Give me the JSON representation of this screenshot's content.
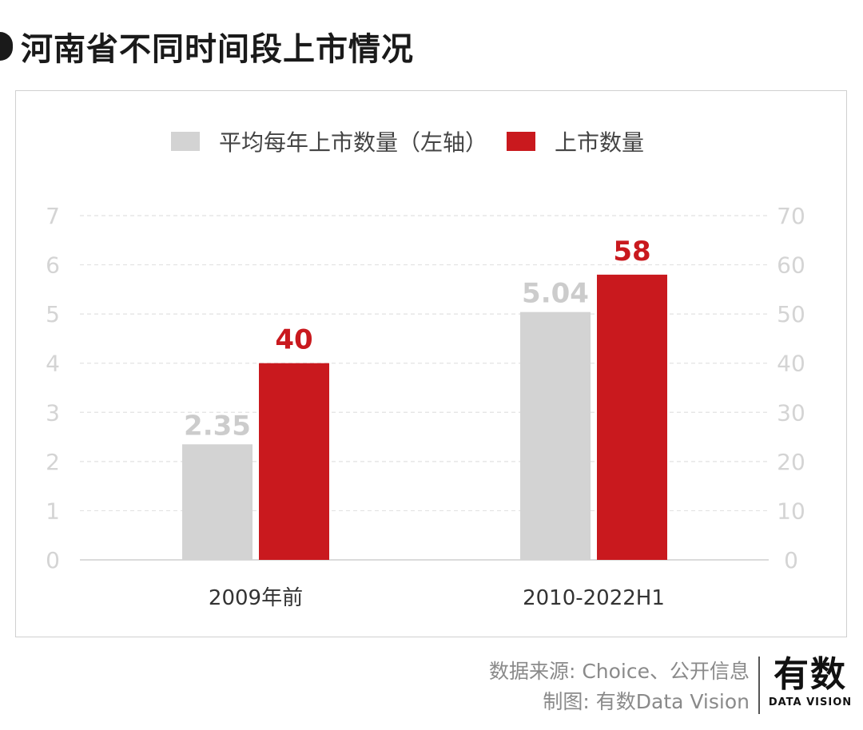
{
  "header": {
    "title": "河南省不同时间段上市情况"
  },
  "legend": {
    "items": [
      {
        "label": "平均每年上市数量（左轴）",
        "color": "#d3d3d3"
      },
      {
        "label": "上市数量",
        "color": "#c9191e"
      }
    ]
  },
  "footer": {
    "source": "数据来源: Choice、公开信息",
    "credit": "制图: 有数Data Vision",
    "logo_cn": "有数",
    "logo_en": "DATA VISION"
  },
  "colors": {
    "avg_bar": "#d3d3d3",
    "count_bar": "#c9191e",
    "avg_label": "#cccccc",
    "count_label": "#c9191e",
    "axis_tick": "#d4d4d4",
    "category_label": "#333333",
    "grid": "#e2e2e2"
  },
  "chart_data": {
    "type": "bar",
    "title": "河南省不同时间段上市情况",
    "categories": [
      "2009年前",
      "2010-2022H1"
    ],
    "series": [
      {
        "name": "平均每年上市数量（左轴）",
        "axis": "left",
        "values": [
          2.35,
          5.04
        ],
        "labels": [
          "2.35",
          "5.04"
        ]
      },
      {
        "name": "上市数量",
        "axis": "right",
        "values": [
          40,
          58
        ],
        "labels": [
          "40",
          "58"
        ]
      }
    ],
    "y_left": {
      "lim": [
        0,
        7
      ],
      "ticks": [
        "0",
        "1",
        "2",
        "3",
        "4",
        "5",
        "6",
        "7"
      ]
    },
    "y_right": {
      "lim": [
        0,
        70
      ],
      "ticks": [
        "0",
        "10",
        "20",
        "30",
        "40",
        "50",
        "60",
        "70"
      ]
    },
    "grid": true,
    "legend_position": "top"
  }
}
